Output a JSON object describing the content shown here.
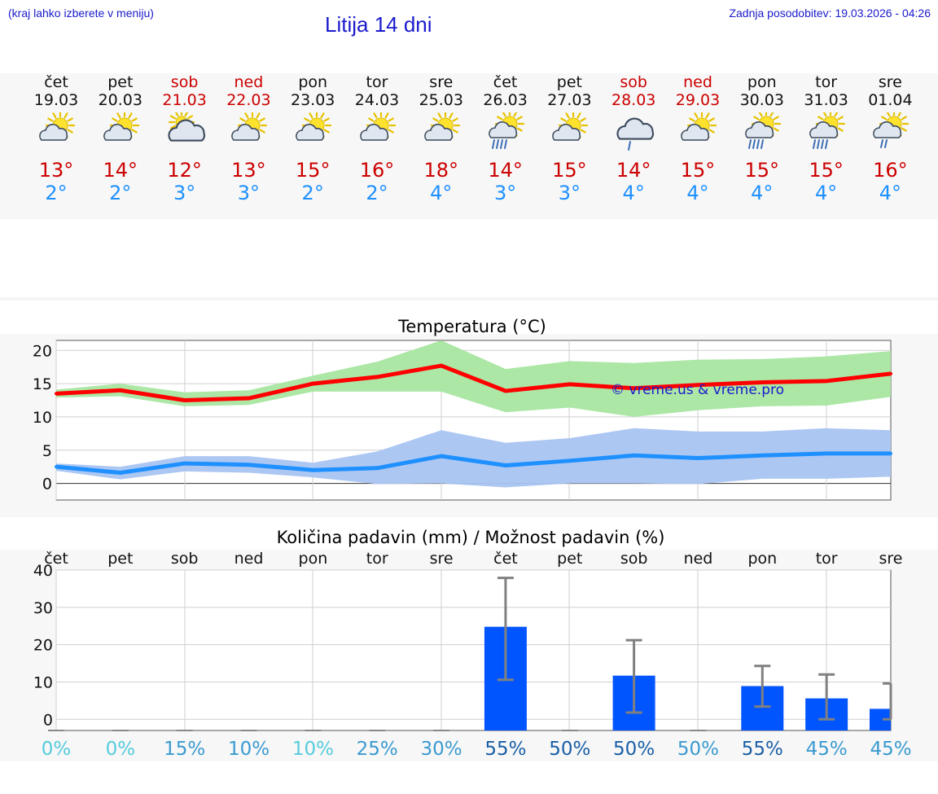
{
  "header": {
    "hint": "(kraj lahko izberete v meniju)",
    "title": "Litija 14 dni",
    "updated": "Zadnja posodobitev: 19.03.2026 - 04:26"
  },
  "days": [
    {
      "name": "čet",
      "date": "19.03",
      "icon": "sun-cloud-icon",
      "max": "13°",
      "min": "2°",
      "weekend": false
    },
    {
      "name": "pet",
      "date": "20.03",
      "icon": "sun-cloud-icon",
      "max": "14°",
      "min": "2°",
      "weekend": false
    },
    {
      "name": "sob",
      "date": "21.03",
      "icon": "cloud-sun-icon",
      "max": "12°",
      "min": "3°",
      "weekend": true
    },
    {
      "name": "ned",
      "date": "22.03",
      "icon": "sun-cloud-icon",
      "max": "13°",
      "min": "3°",
      "weekend": true
    },
    {
      "name": "pon",
      "date": "23.03",
      "icon": "sun-cloud-icon",
      "max": "15°",
      "min": "2°",
      "weekend": false
    },
    {
      "name": "tor",
      "date": "24.03",
      "icon": "sun-cloud-icon",
      "max": "16°",
      "min": "2°",
      "weekend": false
    },
    {
      "name": "sre",
      "date": "25.03",
      "icon": "sun-cloud-icon",
      "max": "18°",
      "min": "4°",
      "weekend": false
    },
    {
      "name": "čet",
      "date": "26.03",
      "icon": "sun-rain-heavy-icon",
      "max": "14°",
      "min": "3°",
      "weekend": false
    },
    {
      "name": "pet",
      "date": "27.03",
      "icon": "sun-cloud-icon",
      "max": "15°",
      "min": "3°",
      "weekend": false
    },
    {
      "name": "sob",
      "date": "28.03",
      "icon": "cloud-rain-icon",
      "max": "14°",
      "min": "4°",
      "weekend": true
    },
    {
      "name": "ned",
      "date": "29.03",
      "icon": "sun-cloud-icon",
      "max": "15°",
      "min": "4°",
      "weekend": true
    },
    {
      "name": "pon",
      "date": "30.03",
      "icon": "sun-rain-heavy-icon",
      "max": "15°",
      "min": "4°",
      "weekend": false
    },
    {
      "name": "tor",
      "date": "31.03",
      "icon": "sun-rain-heavy-icon",
      "max": "15°",
      "min": "4°",
      "weekend": false
    },
    {
      "name": "sre",
      "date": "01.04",
      "icon": "sun-rain-light-icon",
      "max": "16°",
      "min": "4°",
      "weekend": false
    }
  ],
  "chart_data": [
    {
      "type": "line",
      "title": "Temperatura (°C)",
      "watermark": "© vreme.us & vreme.pro",
      "ylim": [
        -2.5,
        21.5
      ],
      "yticks": [
        0,
        5,
        10,
        15,
        20
      ],
      "x": [
        0,
        1,
        2,
        3,
        4,
        5,
        6,
        7,
        8,
        9,
        10,
        11,
        12,
        13
      ],
      "series": [
        {
          "name": "max",
          "color": "#ff0000",
          "band_color": "#a8e6a1",
          "values": [
            13.5,
            14.0,
            12.5,
            12.8,
            15.0,
            16.0,
            17.7,
            13.9,
            14.9,
            14.3,
            14.8,
            15.2,
            15.4,
            16.5
          ],
          "band_low": [
            12.9,
            13.1,
            11.6,
            11.8,
            13.8,
            13.8,
            13.8,
            10.7,
            11.4,
            10.0,
            11.0,
            11.6,
            11.7,
            13.0
          ],
          "band_high": [
            14.1,
            15.0,
            13.7,
            14.0,
            16.2,
            18.3,
            21.5,
            17.2,
            18.4,
            18.1,
            18.6,
            18.7,
            19.1,
            19.9
          ]
        },
        {
          "name": "min",
          "color": "#1e90ff",
          "band_color": "#a9c4f2",
          "values": [
            2.5,
            1.6,
            3.0,
            2.8,
            2.0,
            2.3,
            4.1,
            2.7,
            3.4,
            4.2,
            3.8,
            4.2,
            4.5,
            4.5
          ],
          "band_low": [
            1.9,
            0.6,
            1.8,
            1.6,
            0.9,
            -0.1,
            0.0,
            -0.6,
            0.0,
            0.0,
            -0.1,
            0.7,
            0.7,
            1.0
          ],
          "band_high": [
            3.0,
            2.5,
            4.1,
            4.1,
            3.1,
            4.8,
            8.0,
            6.1,
            6.8,
            8.3,
            7.8,
            7.8,
            8.3,
            8.0
          ]
        }
      ]
    },
    {
      "type": "bar",
      "title": "Količina padavin (mm) / Možnost padavin (%)",
      "ylim": [
        -3,
        40
      ],
      "yticks": [
        0,
        10,
        20,
        30,
        40
      ],
      "categories": [
        "čet",
        "pet",
        "sob",
        "ned",
        "pon",
        "tor",
        "sre",
        "čet",
        "pet",
        "sob",
        "ned",
        "pon",
        "tor",
        "sre"
      ],
      "values": [
        0,
        0,
        0,
        0,
        0,
        0,
        0,
        24.8,
        0,
        11.7,
        0,
        8.9,
        5.6,
        2.8
      ],
      "error_low": [
        0,
        0,
        0,
        0,
        0,
        0,
        0,
        10.6,
        0,
        1.8,
        0,
        3.4,
        0,
        0
      ],
      "error_high": [
        0,
        0,
        0,
        0,
        0,
        0,
        0,
        37.9,
        0,
        21.2,
        0,
        14.3,
        12.0,
        9.6
      ],
      "bar_color": "#0055ff",
      "chance": [
        "0%",
        "0%",
        "15%",
        "10%",
        "10%",
        "25%",
        "30%",
        "55%",
        "50%",
        "50%",
        "50%",
        "55%",
        "45%",
        "45%"
      ],
      "chance_colors": [
        "#55ccdd",
        "#55ccdd",
        "#3a9ad0",
        "#3a9ad0",
        "#55ccdd",
        "#3a9ad0",
        "#3a9ad0",
        "#1a5fa6",
        "#1a5fa6",
        "#1a5fa6",
        "#3a9ad0",
        "#1a5fa6",
        "#3a9ad0",
        "#3a9ad0"
      ]
    }
  ]
}
